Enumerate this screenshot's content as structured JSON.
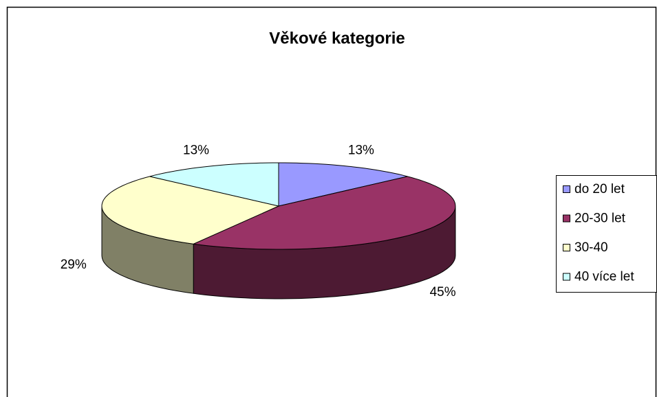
{
  "chart_data": {
    "type": "pie",
    "title": "Věkové kategorie",
    "categories": [
      "do 20 let",
      "20-30 let",
      "30-40",
      "40 více let"
    ],
    "values": [
      13,
      45,
      29,
      13
    ],
    "value_labels": [
      "13%",
      "45%",
      "29%",
      "13%"
    ],
    "colors": [
      "#9999ff",
      "#993366",
      "#ffffcc",
      "#ccffff"
    ],
    "legend": "right"
  }
}
